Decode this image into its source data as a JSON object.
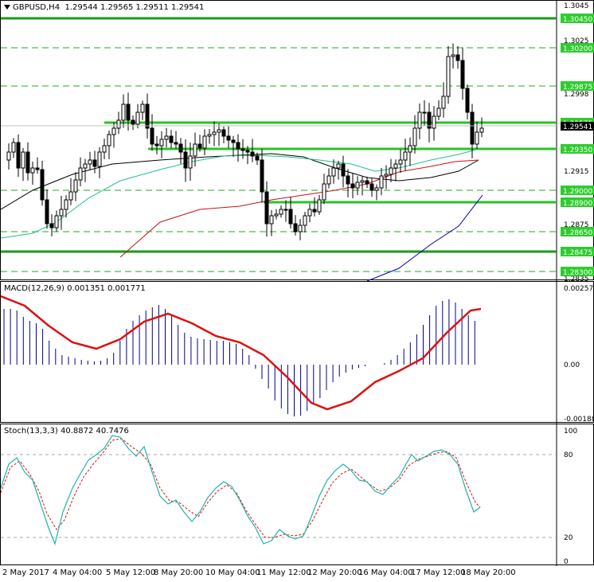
{
  "main_header": {
    "symbol": "GBPUSD,H4",
    "ohlc": "1.29544 1.29565 1.29511 1.29541"
  },
  "macd_header": "MACD(12,26,9) 0.001351 0.001771",
  "stoch_header": "Stoch(13,3,3) 40.8872 40.7476",
  "price_axis": {
    "plain_labels": [
      "1.3045",
      "1.3025",
      "1.2998",
      "1.2955",
      "1.2915",
      "1.2875",
      "1.2835"
    ],
    "level_labels": [
      "1.30450",
      "1.30200",
      "1.29875",
      "1.29575",
      "1.29350",
      "1.29000",
      "1.28900",
      "1.28650",
      "1.28475",
      "1.28300"
    ],
    "current_price": "1.29541"
  },
  "macd_axis": [
    "0.002574",
    "0.00",
    "-0.001889"
  ],
  "stoch_axis": [
    "100",
    "80",
    "20",
    "0"
  ],
  "time_labels": [
    "2 May 2017",
    "4 May 04:00",
    "5 May 12:00",
    "8 May 20:00",
    "10 May 04:00",
    "11 May 12:00",
    "12 May 20:00",
    "16 May 04:00",
    "17 May 12:00",
    "18 May 20:00"
  ],
  "colors": {
    "bull_candle": "#ffffff",
    "bear_candle": "#000000",
    "level_solid": "#27c427",
    "level_dash": "#22aa22",
    "ma_fast": "#000000",
    "ma_mid": "#22c08a",
    "ma_slow": "#cc1111",
    "ma_long": "#0000aa",
    "macd_hist": "#00008b",
    "macd_signal": "#dd1111",
    "stoch_main": "#20b2aa",
    "stoch_signal": "#dd1111"
  }
}
